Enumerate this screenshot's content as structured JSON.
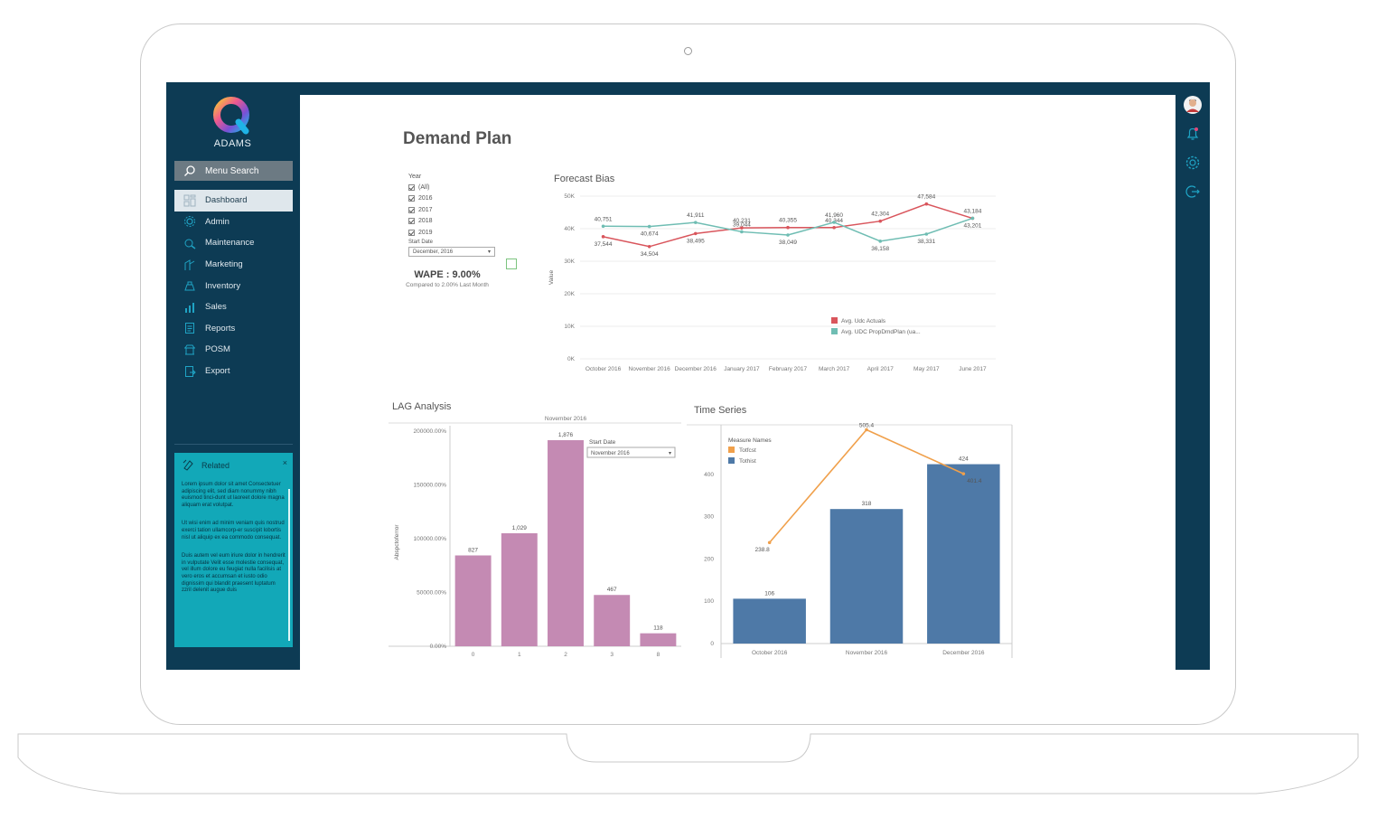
{
  "app": {
    "brand": "ADAMS"
  },
  "sidebar": {
    "search_label": "Menu Search",
    "items": [
      {
        "label": "Dashboard",
        "icon": "dashboard-icon",
        "active": true
      },
      {
        "label": "Admin",
        "icon": "gear-icon"
      },
      {
        "label": "Maintenance",
        "icon": "maintenance-icon"
      },
      {
        "label": "Marketing",
        "icon": "marketing-icon"
      },
      {
        "label": "Inventory",
        "icon": "inventory-icon"
      },
      {
        "label": "Sales",
        "icon": "sales-icon"
      },
      {
        "label": "Reports",
        "icon": "reports-icon"
      },
      {
        "label": "POSM",
        "icon": "posm-icon"
      },
      {
        "label": "Export",
        "icon": "export-icon"
      }
    ],
    "related": {
      "title": "Related",
      "close": "×",
      "paragraphs": [
        "Lorem ipsum dolor sit amet Consectetuer adipiscing elit, sed diam nonummy nibh euismod tinci-dunt ut laoreet dolore magna aliquam erat volutpat.",
        "Ut wisi enim ad minim veniam quis nostrud exerci tation ullamcorp-er suscipit lobortis nisl ut aliquip ex ea commodo consequat.",
        "Duis autem vel eum iriure dolor in hendrerit in vulputate Velit esse molestie consequat, vel illum dolore eu feugiat nulla facilisis at vero eros et accumsan et iusto odio dignissim qui blandit praesent luptatum zzril delenit augue duis"
      ]
    }
  },
  "rail": {
    "icons": [
      "avatar",
      "bell-icon",
      "settings-icon",
      "logout-icon"
    ]
  },
  "page": {
    "title": "Demand Plan"
  },
  "filters": {
    "year_label": "Year",
    "years": [
      "(All)",
      "2016",
      "2017",
      "2018",
      "2019"
    ],
    "start_date_label": "Start Date",
    "start_date_value": "December, 2016",
    "wape": "WAPE : 9.00%",
    "wape_sub": "Compared to 2.00% Last Month"
  },
  "chart_data": [
    {
      "type": "line",
      "title": "Forecast Bias",
      "ylabel": "Value",
      "ylim": [
        0,
        50000
      ],
      "yticks": [
        "0K",
        "10K",
        "20K",
        "30K",
        "40K",
        "50K"
      ],
      "categories": [
        "October 2016",
        "November 2016",
        "December 2016",
        "January 2017",
        "February 2017",
        "March 2017",
        "April 2017",
        "May 2017",
        "June 2017"
      ],
      "series": [
        {
          "name": "Avg. Udc Actuals",
          "color": "#d9555c",
          "values": [
            37544,
            34504,
            38495,
            40231,
            40355,
            40344,
            42304,
            47584,
            43184
          ],
          "labels": [
            "37,544",
            "34,504",
            "38,495",
            "40,231",
            "40,355",
            "40,344",
            "42,304",
            "47,584",
            "43,184"
          ]
        },
        {
          "name": "Avg. UDC PropDmdPlan (ua...",
          "color": "#6fbdb3",
          "values": [
            40751,
            40674,
            41911,
            39044,
            38049,
            41960,
            36158,
            38331,
            43201
          ],
          "labels": [
            "40,751",
            "40,674",
            "41,911",
            "39,044",
            "38,049",
            "41,960",
            "36,158",
            "38,331",
            "43,201"
          ]
        }
      ]
    },
    {
      "type": "bar",
      "title": "LAG Analysis",
      "header": "November 2016",
      "ylabel": "Abspctoferror",
      "ylim": [
        0,
        200000
      ],
      "yticks": [
        "0.00%",
        "50000.00%",
        "100000.00%",
        "150000.00%",
        "200000.00%"
      ],
      "categories": [
        "0",
        "1",
        "2",
        "3",
        "8"
      ],
      "values": [
        827,
        1029,
        1876,
        467,
        118
      ],
      "labels": [
        "827",
        "1,029",
        "1,876",
        "467",
        "118"
      ],
      "color": "#c48ab3",
      "filter_label": "Start Date",
      "filter_value": "November 2016"
    },
    {
      "type": "bar",
      "title": "Time Series",
      "legend_title": "Measure Names",
      "ylim": [
        0,
        500
      ],
      "yticks": [
        "0",
        "100",
        "200",
        "300",
        "400"
      ],
      "categories": [
        "October 2016",
        "November 2016",
        "December 2016"
      ],
      "series": [
        {
          "name": "Totfcst",
          "type": "line",
          "color": "#f0a04b",
          "values": [
            238.8,
            505.4,
            401.4
          ],
          "labels": [
            "238.8",
            "505.4",
            "401.4"
          ]
        },
        {
          "name": "Tothist",
          "type": "bar",
          "color": "#4e79a7",
          "values": [
            106,
            318,
            424
          ],
          "labels": [
            "106",
            "318",
            "424"
          ]
        }
      ]
    }
  ]
}
